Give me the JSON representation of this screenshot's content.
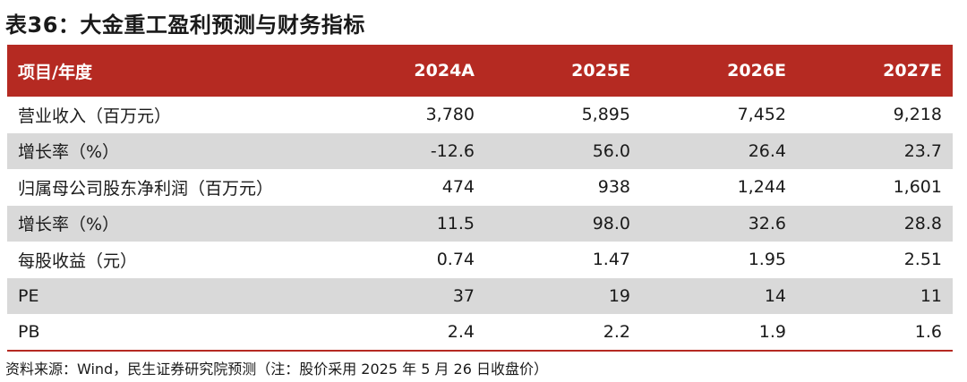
{
  "title": "表36：大金重工盈利预测与财务指标",
  "table": {
    "header": {
      "label": "项目/年度",
      "years": [
        "2024A",
        "2025E",
        "2026E",
        "2027E"
      ]
    },
    "rows": [
      {
        "label": "营业收入（百万元）",
        "values": [
          "3,780",
          "5,895",
          "7,452",
          "9,218"
        ]
      },
      {
        "label": "增长率（%）",
        "values": [
          "-12.6",
          "56.0",
          "26.4",
          "23.7"
        ]
      },
      {
        "label": "归属母公司股东净利润（百万元）",
        "values": [
          "474",
          "938",
          "1,244",
          "1,601"
        ]
      },
      {
        "label": "增长率（%）",
        "values": [
          "11.5",
          "98.0",
          "32.6",
          "28.8"
        ]
      },
      {
        "label": "每股收益（元）",
        "values": [
          "0.74",
          "1.47",
          "1.95",
          "2.51"
        ]
      },
      {
        "label": "PE",
        "values": [
          "37",
          "19",
          "14",
          "11"
        ]
      },
      {
        "label": "PB",
        "values": [
          "2.4",
          "2.2",
          "1.9",
          "1.6"
        ]
      }
    ]
  },
  "source": "资料来源：Wind，民生证券研究院预测（注：股价采用 2025 年 5 月 26 日收盘价）",
  "colors": {
    "header_bg": "#b52a22",
    "header_text": "#ffffff",
    "alt_row_bg": "#d9d9d9"
  }
}
